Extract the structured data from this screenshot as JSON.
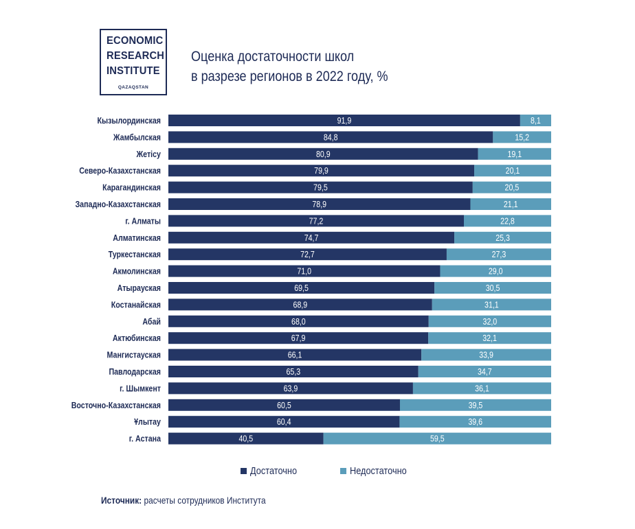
{
  "logo": {
    "line1": "ECONOMIC",
    "line2": "RESEARCH",
    "line3": "INSTITUTE",
    "sub": "QAZAQSTAN"
  },
  "title_line1": "Оценка достаточности школ",
  "title_line2": "в разрезе регионов в 2022 году, %",
  "source": {
    "label": "Источник:",
    "text": " расчеты сотрудников Института"
  },
  "colors": {
    "sufficient": "#243665",
    "insufficient": "#5b9dba",
    "text": "#1d2a55"
  },
  "chart_data": {
    "type": "bar",
    "orientation": "horizontal",
    "stacked": true,
    "categories": [
      "Кызылординская",
      "Жамбылская",
      "Жетісу",
      "Северо-Казахстанская",
      "Карагандинская",
      "Западно-Казахстанская",
      "г. Алматы",
      "Алматинская",
      "Туркестанская",
      "Акмолинская",
      "Атырауская",
      "Костанайская",
      "Абай",
      "Актюбинская",
      "Мангистауская",
      "Павлодарская",
      "г. Шымкент",
      "Восточно-Казахстанская",
      "Ұлытау",
      "г. Астана"
    ],
    "series": [
      {
        "name": "Достаточно",
        "color": "#243665",
        "values": [
          91.9,
          84.8,
          80.9,
          79.9,
          79.5,
          78.9,
          77.2,
          74.7,
          72.7,
          71.0,
          69.5,
          68.9,
          68.0,
          67.9,
          66.1,
          65.3,
          63.9,
          60.5,
          60.4,
          40.5
        ],
        "labels": [
          "91,9",
          "84,8",
          "80,9",
          "79,9",
          "79,5",
          "78,9",
          "77,2",
          "74,7",
          "72,7",
          "71,0",
          "69,5",
          "68,9",
          "68,0",
          "67,9",
          "66,1",
          "65,3",
          "63,9",
          "60,5",
          "60,4",
          "40,5"
        ]
      },
      {
        "name": "Недостаточно",
        "color": "#5b9dba",
        "values": [
          8.1,
          15.2,
          19.1,
          20.1,
          20.5,
          21.1,
          22.8,
          25.3,
          27.3,
          29.0,
          30.5,
          31.1,
          32.0,
          32.1,
          33.9,
          34.7,
          36.1,
          39.5,
          39.6,
          59.5
        ],
        "labels": [
          "8,1",
          "15,2",
          "19,1",
          "20,1",
          "20,5",
          "21,1",
          "22,8",
          "25,3",
          "27,3",
          "29,0",
          "30,5",
          "31,1",
          "32,0",
          "32,1",
          "33,9",
          "34,7",
          "36,1",
          "39,5",
          "39,6",
          "59,5"
        ]
      }
    ],
    "xlim": [
      0,
      100
    ],
    "grid": false,
    "legend_position": "bottom"
  }
}
